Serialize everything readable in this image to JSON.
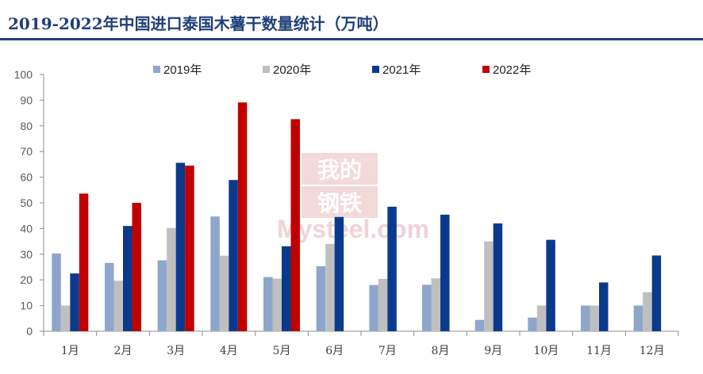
{
  "chart_data": {
    "type": "bar",
    "title": "2019-2022年中国进口泰国木薯干数量统计（万吨）",
    "categories": [
      "1月",
      "2月",
      "3月",
      "4月",
      "5月",
      "6月",
      "7月",
      "8月",
      "9月",
      "10月",
      "11月",
      "12月"
    ],
    "ylim": [
      0,
      100
    ],
    "yticks": [
      0,
      10,
      20,
      30,
      40,
      50,
      60,
      70,
      80,
      90,
      100
    ],
    "legend_position": "top",
    "grid": false,
    "series": [
      {
        "name": "2019年",
        "color": "#8ea6cc",
        "values": [
          30.3,
          26.6,
          27.6,
          44.7,
          21.1,
          25.3,
          18.0,
          18.1,
          4.4,
          5.3,
          10.0,
          10.0
        ]
      },
      {
        "name": "2020年",
        "color": "#bfbfbf",
        "values": [
          10.0,
          19.7,
          40.2,
          29.4,
          20.5,
          34.0,
          20.4,
          20.6,
          35.0,
          10.0,
          10.0,
          15.2
        ]
      },
      {
        "name": "2021年",
        "color": "#0b3a8c",
        "values": [
          22.5,
          41.0,
          65.6,
          58.9,
          33.1,
          44.5,
          48.5,
          45.4,
          42.0,
          35.6,
          19.0,
          29.5
        ]
      },
      {
        "name": "2022年",
        "color": "#c00000",
        "values": [
          53.6,
          50.0,
          64.5,
          89.1,
          82.6,
          null,
          null,
          null,
          null,
          null,
          null,
          null
        ]
      }
    ],
    "watermark": {
      "cn_top": "我的",
      "cn_bottom": "钢铁",
      "en": "Mysteel.com"
    }
  }
}
